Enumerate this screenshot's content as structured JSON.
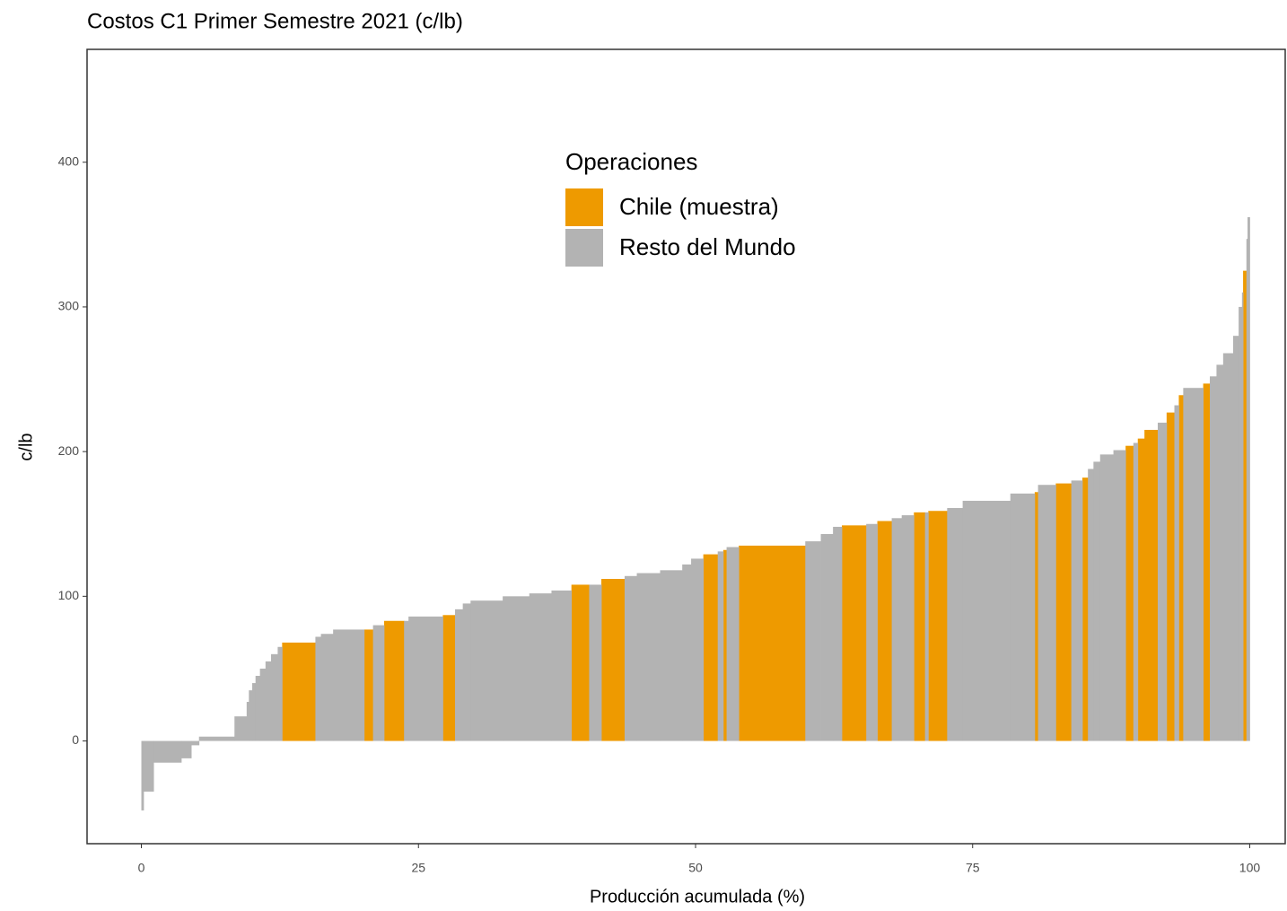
{
  "chart_data": {
    "type": "costcurve",
    "title": "Costos C1 Primer Semestre 2021 (c/lb)",
    "x_label": "Producción acumulada (%)",
    "y_label": "c/lb",
    "legend_title": "Operaciones",
    "xlim": [
      -4.9,
      103.2
    ],
    "ylim": [
      -71,
      478
    ],
    "xticks": [
      0,
      25,
      50,
      75,
      100
    ],
    "yticks": [
      0,
      100,
      200,
      300,
      400
    ],
    "grid": false,
    "series": [
      {
        "name": "Chile (muestra)",
        "color": "#ee9a00",
        "x0": [
          12.7,
          20.1,
          21.9,
          27.2,
          38.8,
          41.5,
          50.7,
          52.5,
          53.9,
          63.2,
          66.4,
          69.7,
          71.0,
          80.6,
          82.5,
          84.9,
          88.8,
          89.9,
          90.5,
          92.5,
          93.6,
          95.8,
          99.4
        ],
        "x1": [
          15.7,
          20.9,
          23.7,
          28.3,
          40.4,
          43.6,
          52.0,
          52.8,
          59.9,
          65.4,
          67.7,
          70.7,
          72.7,
          80.9,
          83.9,
          85.4,
          89.5,
          90.5,
          91.7,
          93.2,
          94.0,
          96.4,
          99.7
        ],
        "values": [
          68,
          77,
          83,
          87,
          108,
          112,
          129,
          132,
          135,
          149,
          152,
          158,
          159,
          172,
          178,
          182,
          204,
          209,
          215,
          227,
          239,
          247,
          325
        ]
      },
      {
        "name": "Resto del Mundo",
        "color": "#b3b3b3",
        "x0": [
          0,
          0.2,
          1.1,
          3.6,
          4.5,
          5.2,
          8.4,
          9.5,
          9.7,
          10.0,
          10.3,
          10.7,
          11.2,
          11.7,
          12.3,
          15.7,
          16.2,
          17.3,
          20.9,
          23.7,
          24.1,
          28.3,
          29.0,
          29.7,
          32.6,
          35.0,
          37.0,
          40.4,
          43.6,
          44.7,
          46.8,
          48.8,
          49.6,
          52.0,
          52.8,
          59.9,
          61.3,
          62.4,
          65.4,
          67.7,
          68.6,
          70.7,
          72.7,
          74.1,
          78.4,
          80.9,
          83.9,
          85.4,
          85.9,
          86.5,
          87.7,
          89.5,
          91.7,
          93.2,
          94.0,
          96.4,
          97.0,
          97.6,
          98.5,
          99.0,
          99.3,
          99.7,
          99.8
        ],
        "x1": [
          0.2,
          1.1,
          3.6,
          4.5,
          5.2,
          8.4,
          9.5,
          9.7,
          10.0,
          10.3,
          10.7,
          11.2,
          11.7,
          12.3,
          12.7,
          16.2,
          17.3,
          20.1,
          21.9,
          24.1,
          27.2,
          29.0,
          29.7,
          32.6,
          35.0,
          37.0,
          38.8,
          41.5,
          44.7,
          46.8,
          48.8,
          49.6,
          50.7,
          52.5,
          53.9,
          61.3,
          62.4,
          63.2,
          66.4,
          68.6,
          69.7,
          71.0,
          74.1,
          78.4,
          80.6,
          82.5,
          84.9,
          85.9,
          86.5,
          87.7,
          88.8,
          89.9,
          92.5,
          93.6,
          95.8,
          97.0,
          97.6,
          98.5,
          99.0,
          99.3,
          99.4,
          99.8,
          100
        ],
        "values": [
          -48,
          -35,
          -15,
          -12,
          -3,
          3,
          17,
          27,
          35,
          40,
          45,
          50,
          55,
          60,
          65,
          72,
          74,
          77,
          80,
          83,
          86,
          91,
          95,
          97,
          100,
          102,
          104,
          108,
          114,
          116,
          118,
          122,
          126,
          131,
          134,
          138,
          143,
          148,
          150,
          154,
          156,
          158,
          161,
          166,
          171,
          177,
          180,
          188,
          193,
          198,
          201,
          206,
          220,
          232,
          244,
          252,
          260,
          268,
          280,
          300,
          310,
          347,
          362
        ]
      }
    ]
  }
}
